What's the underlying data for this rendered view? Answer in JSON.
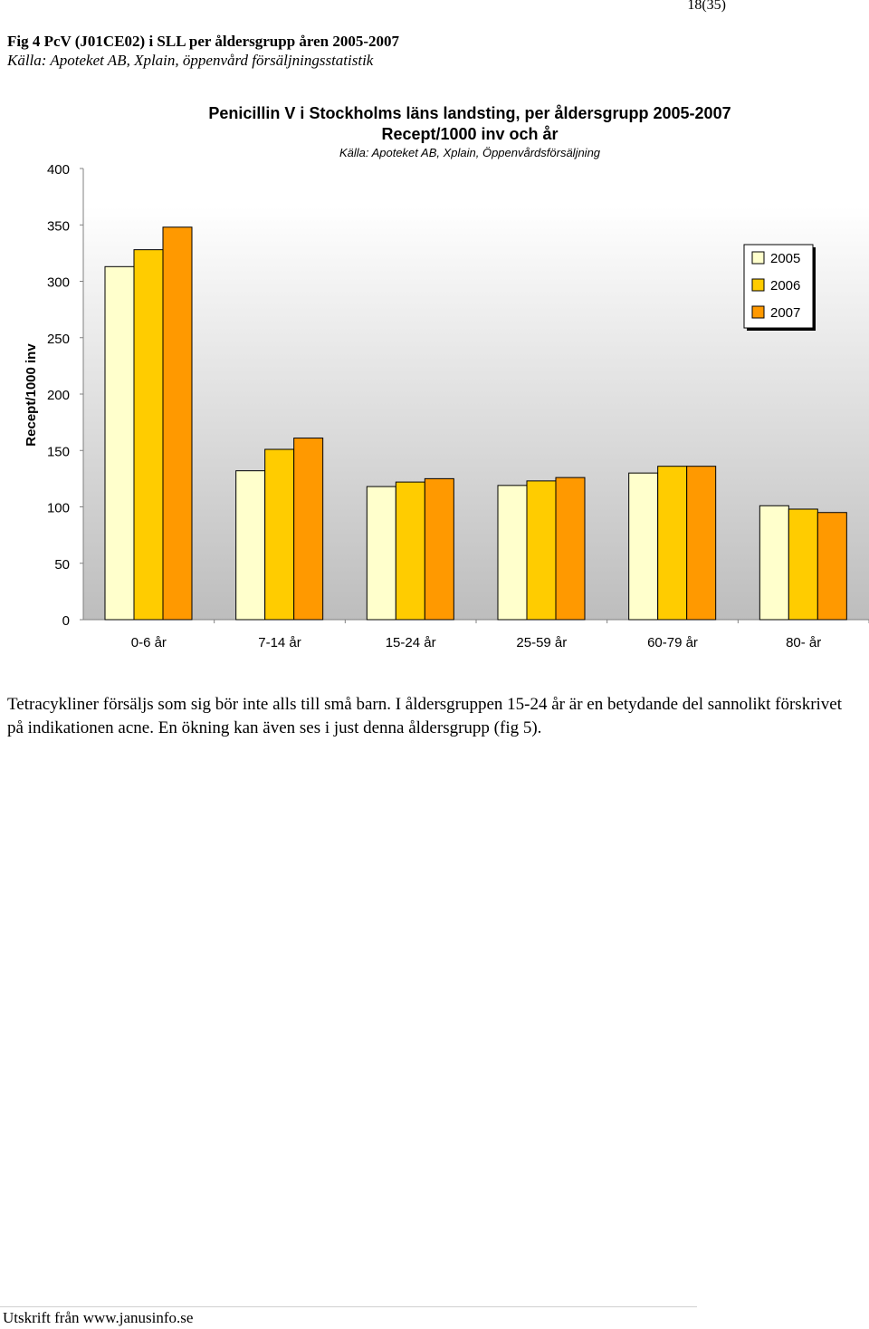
{
  "page": {
    "number": "18(35)",
    "figure_title": "Fig 4 PcV (J01CE02) i SLL per åldersgrupp åren 2005-2007",
    "figure_source": "Källa: Apoteket AB, Xplain, öppenvård försäljningsstatistik",
    "body_text": "Tetracykliner försäljs som sig bör inte alls till små barn. I åldersgruppen 15-24 år är en betydande del sannolikt förskrivet på indikationen acne. En ökning kan även ses i just denna åldersgrupp (fig 5).",
    "footer": "Utskrift från www.janusinfo.se"
  },
  "chart_data": {
    "type": "bar",
    "title": "Penicillin V i Stockholms läns landsting, per åldersgrupp 2005-2007",
    "subtitle": "Recept/1000 inv och år",
    "source_note": "Källa: Apoteket AB, Xplain, Öppenvårdsförsäljning",
    "xlabel": "",
    "ylabel": "Recept/1000 inv",
    "ylim": [
      0,
      400
    ],
    "yticks": [
      0,
      50,
      100,
      150,
      200,
      250,
      300,
      350,
      400
    ],
    "categories": [
      "0-6 år",
      "7-14 år",
      "15-24 år",
      "25-59 år",
      "60-79 år",
      "80- år"
    ],
    "series": [
      {
        "name": "2005",
        "color": "#FFFFCC",
        "values": [
          313,
          132,
          118,
          119,
          130,
          101
        ]
      },
      {
        "name": "2006",
        "color": "#FFCC00",
        "values": [
          328,
          151,
          122,
          123,
          136,
          98
        ]
      },
      {
        "name": "2007",
        "color": "#FF9900",
        "values": [
          348,
          161,
          125,
          126,
          136,
          95
        ]
      }
    ],
    "legend_position": "right",
    "grid": false
  }
}
